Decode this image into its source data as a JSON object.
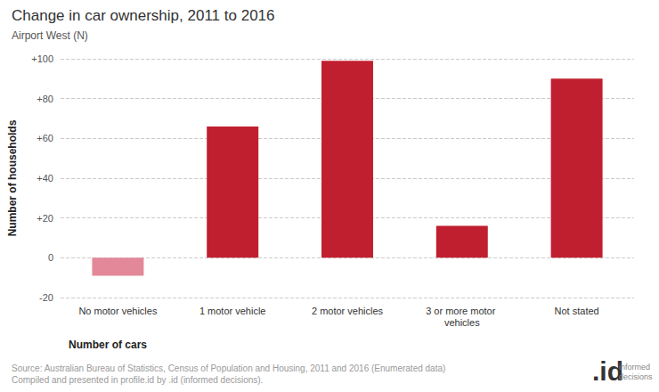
{
  "chart_data": {
    "type": "bar",
    "title": "Change in car ownership, 2011 to 2016",
    "subtitle": "Airport West (N)",
    "x_label": "Number of cars",
    "y_label": "Number of households",
    "categories": [
      "No motor vehicles",
      "1 motor vehicle",
      "2 motor vehicles",
      "3 or more motor vehicles",
      "Not stated"
    ],
    "values": [
      -9,
      66,
      99,
      16,
      90
    ],
    "colors": [
      "#e38898",
      "#c01f2f",
      "#c01f2f",
      "#c01f2f",
      "#c01f2f"
    ],
    "ylim": [
      -20,
      100
    ],
    "yticks": [
      -20,
      0,
      {
        "value": 20,
        "label": "+20"
      },
      {
        "value": 40,
        "label": "+40"
      },
      {
        "value": 60,
        "label": "+60"
      },
      {
        "value": 80,
        "label": "+80"
      },
      {
        "value": 100,
        "label": "+100"
      }
    ],
    "grid": true,
    "source": [
      "Source: Australian Bureau of Statistics, Census of Population and Housing, 2011 and 2016 (Enumerated data)",
      "Compiled and presented in profile.id by .id (informed decisions)."
    ],
    "logo": ".id",
    "logo_text": "informed decisions"
  }
}
